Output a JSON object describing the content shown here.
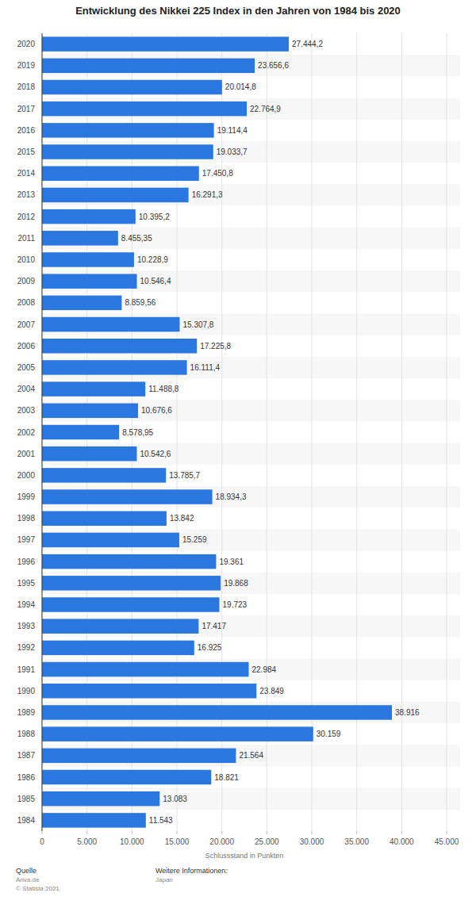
{
  "chart_data": {
    "type": "bar",
    "orientation": "horizontal",
    "title": "Entwicklung des Nikkei 225 Index in den Jahren von 1984 bis 2020",
    "xlabel": "Schlussstand in Punkten",
    "categories": [
      "2020",
      "2019",
      "2018",
      "2017",
      "2016",
      "2015",
      "2014",
      "2013",
      "2012",
      "2011",
      "2010",
      "2009",
      "2008",
      "2007",
      "2006",
      "2005",
      "2004",
      "2003",
      "2002",
      "2001",
      "2000",
      "1999",
      "1998",
      "1997",
      "1996",
      "1995",
      "1994",
      "1993",
      "1992",
      "1991",
      "1990",
      "1989",
      "1988",
      "1987",
      "1986",
      "1985",
      "1984"
    ],
    "values": [
      27444.2,
      23656.6,
      20014.8,
      22764.9,
      19114.4,
      19033.7,
      17450.8,
      16291.3,
      10395.2,
      8455.35,
      10228.9,
      10546.4,
      8859.56,
      15307.8,
      17225.8,
      16111.4,
      11488.8,
      10676.6,
      8578.95,
      10542.6,
      13785.7,
      18934.3,
      13842,
      15259,
      19361,
      19868,
      19723,
      17417,
      16925,
      22984,
      23849,
      38916,
      30159,
      21564,
      18821,
      13083,
      11543
    ],
    "value_labels": [
      "27.444,2",
      "23.656,6",
      "20.014,8",
      "22.764,9",
      "19.114,4",
      "19.033,7",
      "17.450,8",
      "16.291,3",
      "10.395,2",
      "8.455,35",
      "10.228,9",
      "10.546,4",
      "8.859,56",
      "15.307,8",
      "17.225,8",
      "16.111,4",
      "11.488,8",
      "10.676,6",
      "8.578,95",
      "10.542,6",
      "13.785,7",
      "18.934,3",
      "13.842",
      "15.259",
      "19.361",
      "19.868",
      "19.723",
      "17.417",
      "16.925",
      "22.984",
      "23.849",
      "38.916",
      "30.159",
      "21.564",
      "18.821",
      "13.083",
      "11.543"
    ],
    "color": "#2a77e0",
    "data_labels": true,
    "grid": true,
    "xlim": [
      0,
      45000
    ],
    "xticks": [
      0,
      {
        "value": 5000,
        "label": "5.000"
      },
      {
        "value": 10000,
        "label": "10.000"
      },
      {
        "value": 15000,
        "label": "15.000"
      },
      {
        "value": 20000,
        "label": "20.000"
      },
      {
        "value": 25000,
        "label": "25.000"
      },
      {
        "value": 30000,
        "label": "30.000"
      },
      {
        "value": 35000,
        "label": "35.000"
      },
      {
        "value": 40000,
        "label": "40.000"
      },
      {
        "value": 45000,
        "label": "45.000"
      }
    ],
    "annotations": [
      "Quelle",
      "Ariva.de",
      "© Statista 2021",
      "Weitere Informationen:",
      "Japan"
    ]
  }
}
